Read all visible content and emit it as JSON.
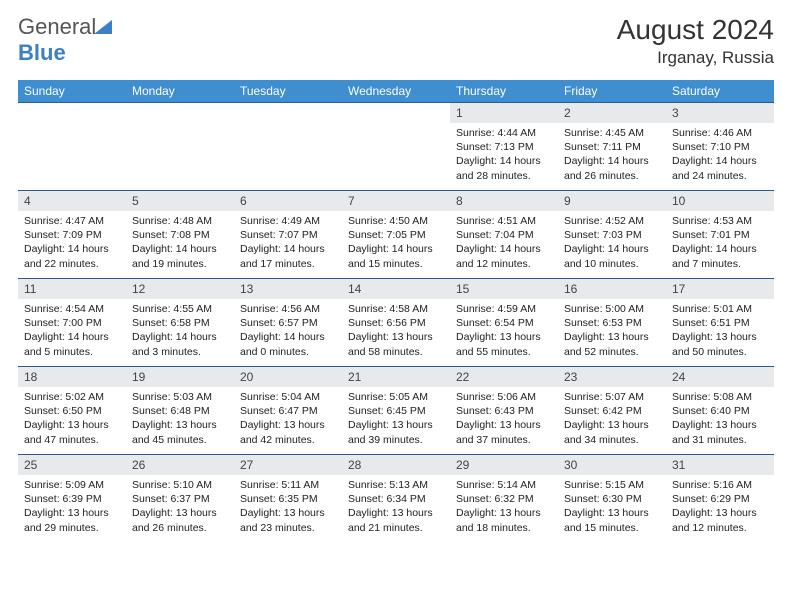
{
  "logo": {
    "part1": "General",
    "part2": "Blue"
  },
  "title": "August 2024",
  "location": "Irganay, Russia",
  "day_header_bg": "#3e8ed0",
  "day_header_fg": "#ffffff",
  "daynum_bg": "#e7e9eb",
  "cell_border": "#2a5a9a",
  "day_names": [
    "Sunday",
    "Monday",
    "Tuesday",
    "Wednesday",
    "Thursday",
    "Friday",
    "Saturday"
  ],
  "weeks": [
    [
      null,
      null,
      null,
      null,
      {
        "n": "1",
        "sr": "Sunrise: 4:44 AM",
        "ss": "Sunset: 7:13 PM",
        "dl": "Daylight: 14 hours and 28 minutes."
      },
      {
        "n": "2",
        "sr": "Sunrise: 4:45 AM",
        "ss": "Sunset: 7:11 PM",
        "dl": "Daylight: 14 hours and 26 minutes."
      },
      {
        "n": "3",
        "sr": "Sunrise: 4:46 AM",
        "ss": "Sunset: 7:10 PM",
        "dl": "Daylight: 14 hours and 24 minutes."
      }
    ],
    [
      {
        "n": "4",
        "sr": "Sunrise: 4:47 AM",
        "ss": "Sunset: 7:09 PM",
        "dl": "Daylight: 14 hours and 22 minutes."
      },
      {
        "n": "5",
        "sr": "Sunrise: 4:48 AM",
        "ss": "Sunset: 7:08 PM",
        "dl": "Daylight: 14 hours and 19 minutes."
      },
      {
        "n": "6",
        "sr": "Sunrise: 4:49 AM",
        "ss": "Sunset: 7:07 PM",
        "dl": "Daylight: 14 hours and 17 minutes."
      },
      {
        "n": "7",
        "sr": "Sunrise: 4:50 AM",
        "ss": "Sunset: 7:05 PM",
        "dl": "Daylight: 14 hours and 15 minutes."
      },
      {
        "n": "8",
        "sr": "Sunrise: 4:51 AM",
        "ss": "Sunset: 7:04 PM",
        "dl": "Daylight: 14 hours and 12 minutes."
      },
      {
        "n": "9",
        "sr": "Sunrise: 4:52 AM",
        "ss": "Sunset: 7:03 PM",
        "dl": "Daylight: 14 hours and 10 minutes."
      },
      {
        "n": "10",
        "sr": "Sunrise: 4:53 AM",
        "ss": "Sunset: 7:01 PM",
        "dl": "Daylight: 14 hours and 7 minutes."
      }
    ],
    [
      {
        "n": "11",
        "sr": "Sunrise: 4:54 AM",
        "ss": "Sunset: 7:00 PM",
        "dl": "Daylight: 14 hours and 5 minutes."
      },
      {
        "n": "12",
        "sr": "Sunrise: 4:55 AM",
        "ss": "Sunset: 6:58 PM",
        "dl": "Daylight: 14 hours and 3 minutes."
      },
      {
        "n": "13",
        "sr": "Sunrise: 4:56 AM",
        "ss": "Sunset: 6:57 PM",
        "dl": "Daylight: 14 hours and 0 minutes."
      },
      {
        "n": "14",
        "sr": "Sunrise: 4:58 AM",
        "ss": "Sunset: 6:56 PM",
        "dl": "Daylight: 13 hours and 58 minutes."
      },
      {
        "n": "15",
        "sr": "Sunrise: 4:59 AM",
        "ss": "Sunset: 6:54 PM",
        "dl": "Daylight: 13 hours and 55 minutes."
      },
      {
        "n": "16",
        "sr": "Sunrise: 5:00 AM",
        "ss": "Sunset: 6:53 PM",
        "dl": "Daylight: 13 hours and 52 minutes."
      },
      {
        "n": "17",
        "sr": "Sunrise: 5:01 AM",
        "ss": "Sunset: 6:51 PM",
        "dl": "Daylight: 13 hours and 50 minutes."
      }
    ],
    [
      {
        "n": "18",
        "sr": "Sunrise: 5:02 AM",
        "ss": "Sunset: 6:50 PM",
        "dl": "Daylight: 13 hours and 47 minutes."
      },
      {
        "n": "19",
        "sr": "Sunrise: 5:03 AM",
        "ss": "Sunset: 6:48 PM",
        "dl": "Daylight: 13 hours and 45 minutes."
      },
      {
        "n": "20",
        "sr": "Sunrise: 5:04 AM",
        "ss": "Sunset: 6:47 PM",
        "dl": "Daylight: 13 hours and 42 minutes."
      },
      {
        "n": "21",
        "sr": "Sunrise: 5:05 AM",
        "ss": "Sunset: 6:45 PM",
        "dl": "Daylight: 13 hours and 39 minutes."
      },
      {
        "n": "22",
        "sr": "Sunrise: 5:06 AM",
        "ss": "Sunset: 6:43 PM",
        "dl": "Daylight: 13 hours and 37 minutes."
      },
      {
        "n": "23",
        "sr": "Sunrise: 5:07 AM",
        "ss": "Sunset: 6:42 PM",
        "dl": "Daylight: 13 hours and 34 minutes."
      },
      {
        "n": "24",
        "sr": "Sunrise: 5:08 AM",
        "ss": "Sunset: 6:40 PM",
        "dl": "Daylight: 13 hours and 31 minutes."
      }
    ],
    [
      {
        "n": "25",
        "sr": "Sunrise: 5:09 AM",
        "ss": "Sunset: 6:39 PM",
        "dl": "Daylight: 13 hours and 29 minutes."
      },
      {
        "n": "26",
        "sr": "Sunrise: 5:10 AM",
        "ss": "Sunset: 6:37 PM",
        "dl": "Daylight: 13 hours and 26 minutes."
      },
      {
        "n": "27",
        "sr": "Sunrise: 5:11 AM",
        "ss": "Sunset: 6:35 PM",
        "dl": "Daylight: 13 hours and 23 minutes."
      },
      {
        "n": "28",
        "sr": "Sunrise: 5:13 AM",
        "ss": "Sunset: 6:34 PM",
        "dl": "Daylight: 13 hours and 21 minutes."
      },
      {
        "n": "29",
        "sr": "Sunrise: 5:14 AM",
        "ss": "Sunset: 6:32 PM",
        "dl": "Daylight: 13 hours and 18 minutes."
      },
      {
        "n": "30",
        "sr": "Sunrise: 5:15 AM",
        "ss": "Sunset: 6:30 PM",
        "dl": "Daylight: 13 hours and 15 minutes."
      },
      {
        "n": "31",
        "sr": "Sunrise: 5:16 AM",
        "ss": "Sunset: 6:29 PM",
        "dl": "Daylight: 13 hours and 12 minutes."
      }
    ]
  ]
}
